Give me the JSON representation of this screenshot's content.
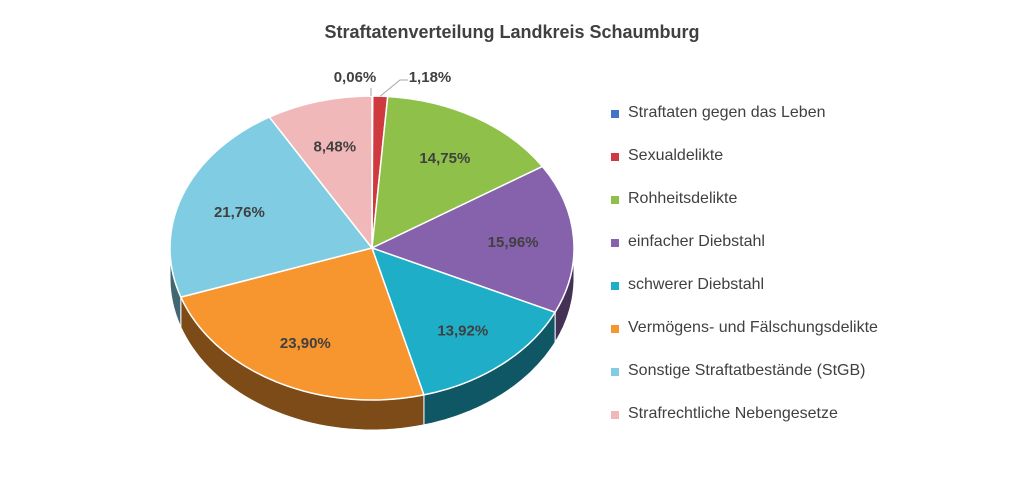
{
  "chart_data": {
    "type": "pie",
    "style": "3d",
    "title": "Straftatenverteilung Landkreis Schaumburg",
    "legend_position": "right",
    "slices": [
      {
        "label": "Straftaten gegen das Leben",
        "value": 0.06,
        "display": "0,06%",
        "color": "#4472c4"
      },
      {
        "label": "Sexualdelikte",
        "value": 1.18,
        "display": "1,18%",
        "color": "#cf3a40"
      },
      {
        "label": "Rohheitsdelikte",
        "value": 14.75,
        "display": "14,75%",
        "color": "#8fc04a"
      },
      {
        "label": "einfacher Diebstahl",
        "value": 15.96,
        "display": "15,96%",
        "color": "#8661ac"
      },
      {
        "label": "schwerer Diebstahl",
        "value": 13.92,
        "display": "13,92%",
        "color": "#1eaec8"
      },
      {
        "label": "Vermögens- und Fälschungsdelikte",
        "value": 23.9,
        "display": "23,90%",
        "color": "#f7952f"
      },
      {
        "label": "Sonstige Straftatbestände (StGB)",
        "value": 21.76,
        "display": "21,76%",
        "color": "#80cde3"
      },
      {
        "label": "Strafrechtliche Nebengesetze",
        "value": 8.48,
        "display": "8,48%",
        "color": "#f0b8b8"
      }
    ]
  }
}
